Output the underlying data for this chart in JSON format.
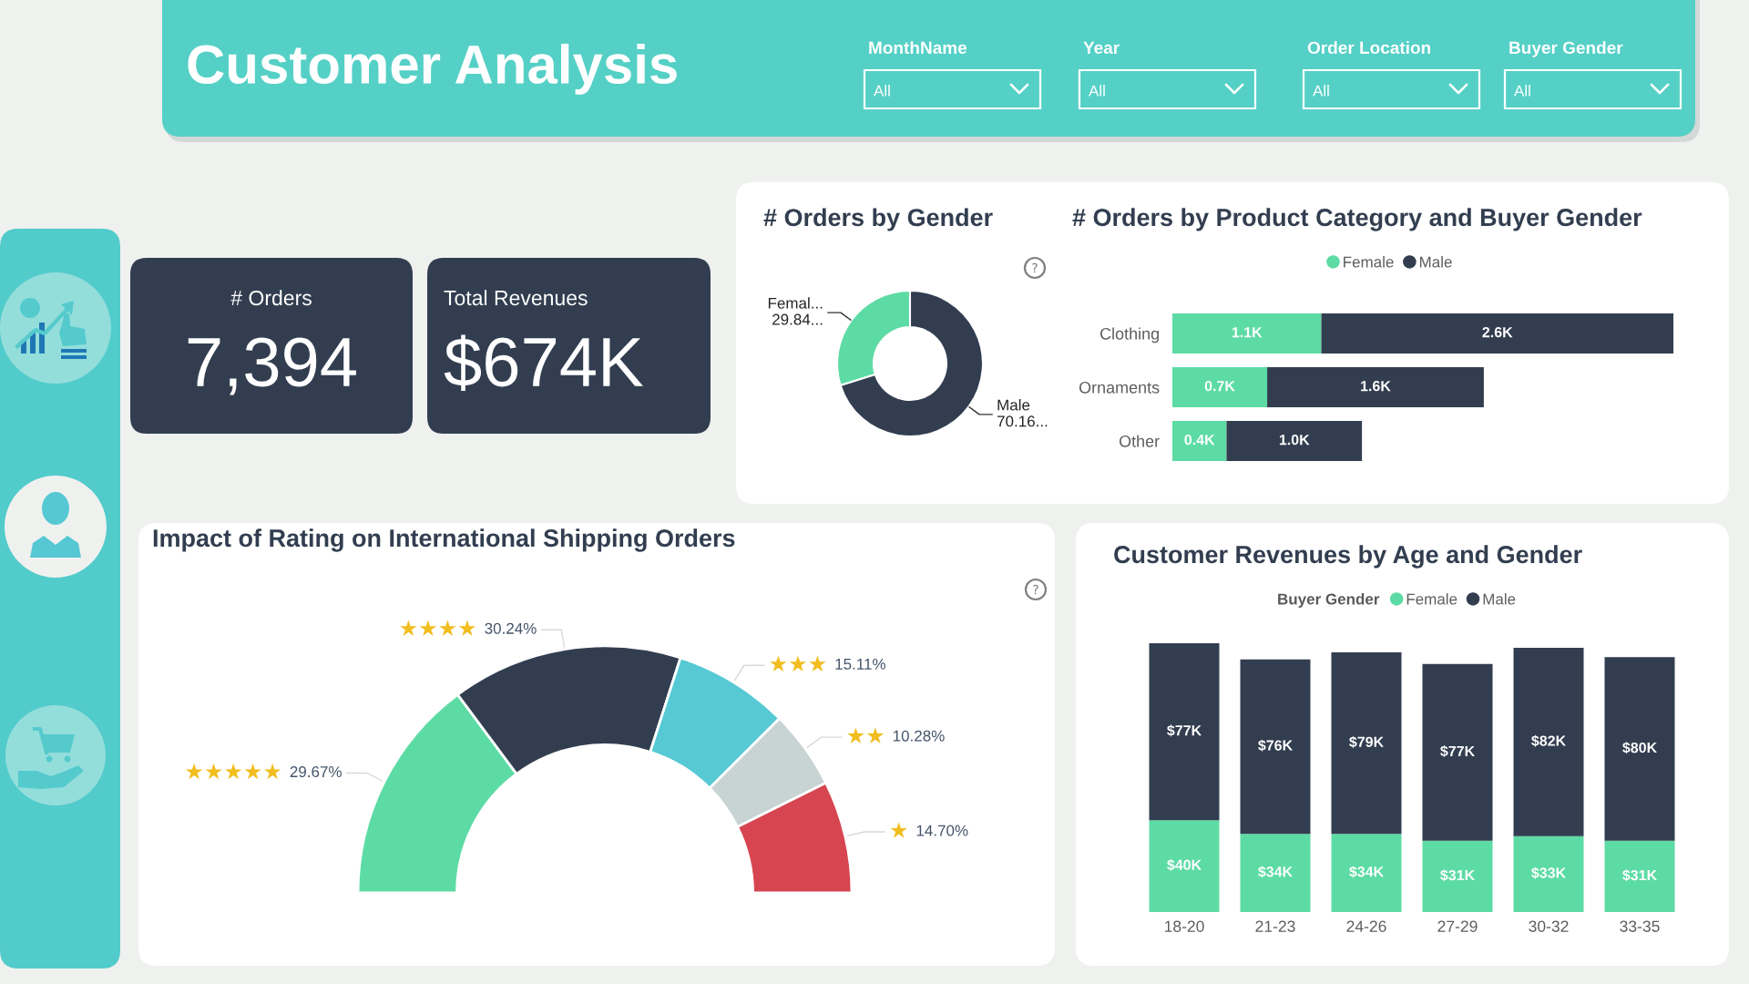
{
  "chart_data": [
    {
      "type": "other",
      "title": "Customer Analysis",
      "annotations": [
        "MonthName",
        "All",
        "Year",
        "All",
        "Order Location",
        "All",
        "Buyer Gender",
        "All"
      ]
    },
    {
      "type": "other",
      "title": "# Orders",
      "annotations": [
        "7,394"
      ]
    },
    {
      "type": "other",
      "title": "Total Revenues",
      "annotations": [
        "$674K"
      ]
    },
    {
      "type": "donut",
      "title": "# Orders by Gender",
      "categories": [
        "Femal...",
        "Male"
      ],
      "values": [
        29.84,
        70.16
      ],
      "colors": [
        "#5ddba4",
        "#323e50"
      ],
      "value_labels": [
        "29.84...",
        "70.16..."
      ]
    },
    {
      "type": "bar",
      "orientation": "horizontal",
      "stacked": true,
      "title": "# Orders by Product Category and Buyer Gender",
      "categories": [
        "Clothing",
        "Ornaments",
        "Other"
      ],
      "series": [
        {
          "name": "Female",
          "color": "#5ddba4",
          "values": [
            1.1,
            0.7,
            0.4
          ],
          "value_labels": [
            "1.1K",
            "0.7K",
            "0.4K"
          ]
        },
        {
          "name": "Male",
          "color": "#323e50",
          "values": [
            2.6,
            1.6,
            1.0
          ],
          "value_labels": [
            "2.6K",
            "1.6K",
            "1.0K"
          ]
        }
      ],
      "legend": "top",
      "tick_labels": "y"
    },
    {
      "type": "donut",
      "title": "Impact of Rating on International Shipping Orders",
      "categories": [
        "★★★★★",
        "★★★★",
        "★★★",
        "★★",
        "★"
      ],
      "values": [
        29.67,
        30.24,
        15.11,
        10.28,
        14.7
      ],
      "colors": [
        "#5ddba4",
        "#323e50",
        "#56c9d4",
        "#c8d3d3",
        "#d64550"
      ],
      "value_labels": [
        "29.67%",
        "30.24%",
        "15.11%",
        "10.28%",
        "14.70%"
      ]
    },
    {
      "type": "bar",
      "stacked": true,
      "title": "Customer Revenues by Age and Gender",
      "legend_title": "Buyer Gender",
      "categories": [
        "18-20",
        "21-23",
        "24-26",
        "27-29",
        "30-32",
        "33-35"
      ],
      "series": [
        {
          "name": "Female",
          "color": "#5ddba4",
          "values": [
            40,
            34,
            34,
            31,
            33,
            31
          ],
          "value_labels": [
            "$40K",
            "$34K",
            "$34K",
            "$31K",
            "$33K",
            "$31K"
          ]
        },
        {
          "name": "Male",
          "color": "#323e50",
          "values": [
            77,
            76,
            79,
            77,
            82,
            80
          ],
          "value_labels": [
            "$77K",
            "$76K",
            "$79K",
            "$77K",
            "$82K",
            "$80K"
          ]
        }
      ],
      "legend": "top",
      "tick_labels": "x"
    }
  ]
}
